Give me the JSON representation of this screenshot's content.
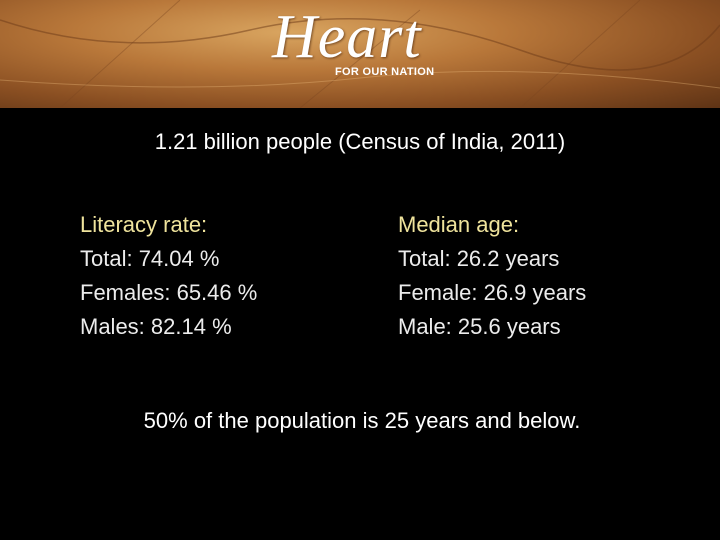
{
  "header": {
    "logo": "Heart",
    "tagline": "FOR OUR NATION"
  },
  "heading": "1.21 billion people (Census of India, 2011)",
  "columns": [
    {
      "title": "Literacy rate:",
      "lines": [
        "Total: 74.04 %",
        "Females: 65.46 %",
        "Males: 82.14 %"
      ]
    },
    {
      "title": "Median age:",
      "lines": [
        "Total: 26.2 years",
        "Female: 26.9 years",
        "Male: 25.6 years"
      ]
    }
  ],
  "footer": "50% of the population is 25 years and below."
}
